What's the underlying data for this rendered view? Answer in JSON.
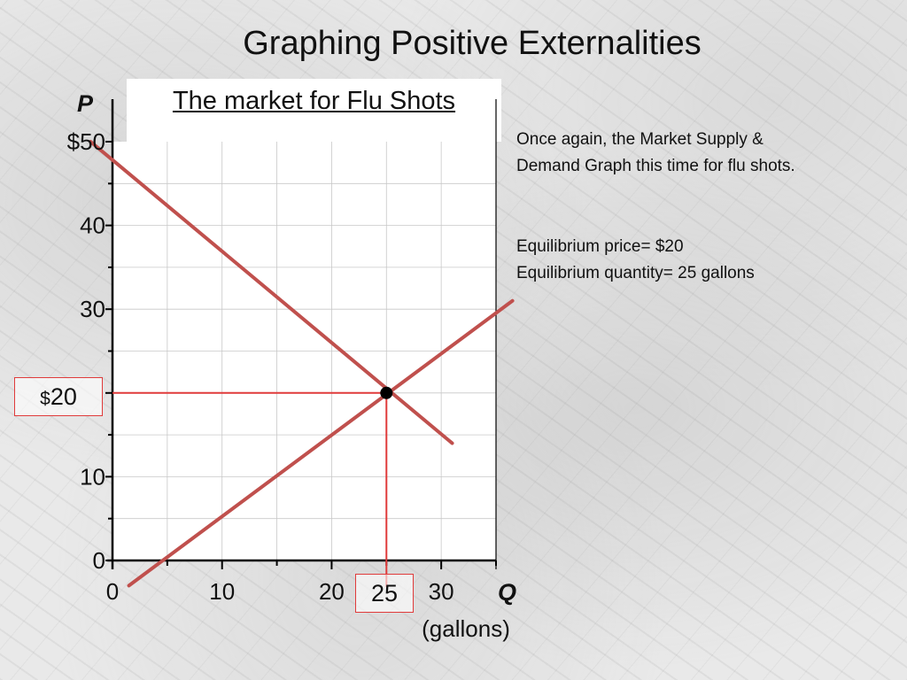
{
  "slide": {
    "title": "Graphing Positive Externalities",
    "notes": {
      "line1": "Once again, the Market Supply &",
      "line2": "Demand Graph this time for flu shots.",
      "line3": "Equilibrium price= $20",
      "line4": "Equilibrium quantity= 25 gallons"
    }
  },
  "chart_data": {
    "type": "line",
    "title": "The market for Flu Shots",
    "ylabel": "P",
    "xlabel": "Q",
    "xunit": "(gallons)",
    "xlim": [
      0,
      35
    ],
    "ylim": [
      0,
      50
    ],
    "x_ticks": [
      0,
      10,
      20,
      30
    ],
    "y_ticks": [
      0,
      10,
      20,
      30,
      40,
      50
    ],
    "y_tick_labels": [
      "0",
      "10",
      "20",
      "30",
      "40",
      "$50"
    ],
    "grid": true,
    "series": [
      {
        "values": [
          [
            -2,
            50
          ],
          [
            31,
            14
          ]
        ],
        "color": "#c0504d"
      },
      {
        "values": [
          [
            1.5,
            -3
          ],
          [
            36.5,
            31
          ]
        ],
        "color": "#c0504d"
      }
    ],
    "equilibrium": {
      "q": 25,
      "p": 20
    },
    "highlighted": {
      "price_symbol": "$",
      "price": "20",
      "quantity": "25"
    }
  }
}
